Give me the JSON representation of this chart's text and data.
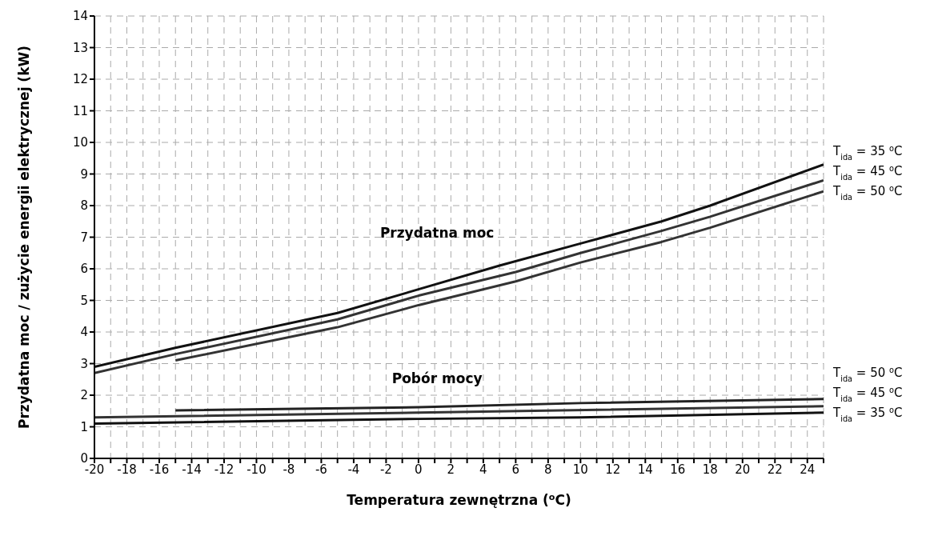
{
  "chart_data": {
    "type": "line",
    "xlabel": "Temperatura zewnętrzna ($^{o}$C)",
    "ylabel": "Przydatna moc / zużycie energii elektrycznej (kW)",
    "xlim": [
      -20,
      25
    ],
    "ylim": [
      0,
      14
    ],
    "xticks": [
      -20,
      {
        "value": -19,
        "label": null
      },
      -18,
      {
        "value": -17,
        "label": null
      },
      -16,
      {
        "value": -15,
        "label": null
      },
      -14,
      {
        "value": -13,
        "label": null
      },
      -12,
      {
        "value": -11,
        "label": null
      },
      -10,
      {
        "value": -9,
        "label": null
      },
      -8,
      {
        "value": -7,
        "label": null
      },
      -6,
      {
        "value": -5,
        "label": null
      },
      -4,
      {
        "value": -3,
        "label": null
      },
      -2,
      {
        "value": -1,
        "label": null
      },
      0,
      {
        "value": 1,
        "label": null
      },
      2,
      {
        "value": 3,
        "label": null
      },
      4,
      {
        "value": 5,
        "label": null
      },
      6,
      {
        "value": 7,
        "label": null
      },
      8,
      {
        "value": 9,
        "label": null
      },
      10,
      {
        "value": 11,
        "label": null
      },
      12,
      {
        "value": 13,
        "label": null
      },
      14,
      {
        "value": 15,
        "label": null
      },
      16,
      {
        "value": 17,
        "label": null
      },
      18,
      {
        "value": 19,
        "label": null
      },
      20,
      {
        "value": 21,
        "label": null
      },
      22,
      {
        "value": 23,
        "label": null
      },
      24,
      {
        "value": 25,
        "label": null
      }
    ],
    "yticks": [
      0,
      1,
      2,
      3,
      4,
      5,
      6,
      7,
      8,
      9,
      10,
      11,
      12,
      13,
      14
    ],
    "grid": true,
    "legend": false,
    "marker": "none",
    "line_style": "solid",
    "series": [
      {
        "name": "T$_{ida}$ = 35 $^{o}$C",
        "color": "#111111",
        "x": [
          -20,
          -15,
          -5,
          0,
          5,
          10,
          15,
          18,
          25
        ],
        "values": [
          2.9,
          3.5,
          4.6,
          5.35,
          6.1,
          6.8,
          7.5,
          8.0,
          9.3
        ]
      },
      {
        "name": "T$_{ida}$ = 45 $^{o}$C",
        "color": "#333333",
        "x": [
          -20,
          -15,
          -5,
          0,
          6,
          10,
          15,
          18,
          25
        ],
        "values": [
          2.7,
          3.3,
          4.4,
          5.15,
          5.9,
          6.5,
          7.2,
          7.65,
          8.8
        ]
      },
      {
        "name": "T$_{ida}$ = 50 $^{o}$C",
        "color": "#333333",
        "x": [
          -15,
          -5,
          0,
          6,
          10,
          15,
          18,
          25
        ],
        "values": [
          3.1,
          4.15,
          4.85,
          5.6,
          6.2,
          6.85,
          7.3,
          8.45
        ]
      },
      {
        "name": "T$_{ida}$ = 50 $^{o}$C",
        "color": "#222222",
        "x": [
          -15,
          0,
          10,
          25
        ],
        "values": [
          1.52,
          1.62,
          1.75,
          1.88
        ]
      },
      {
        "name": "T$_{ida}$ = 45 $^{o}$C",
        "color": "#333333",
        "x": [
          -20,
          0,
          25
        ],
        "values": [
          1.3,
          1.45,
          1.65
        ]
      },
      {
        "name": "T$_{ida}$ = 35 $^{o}$C",
        "color": "#111111",
        "x": [
          -20,
          0,
          10,
          25
        ],
        "values": [
          1.1,
          1.25,
          1.3,
          1.45
        ]
      }
    ],
    "annotations": [
      "Przydatna moc",
      "Pobór mocy"
    ]
  }
}
